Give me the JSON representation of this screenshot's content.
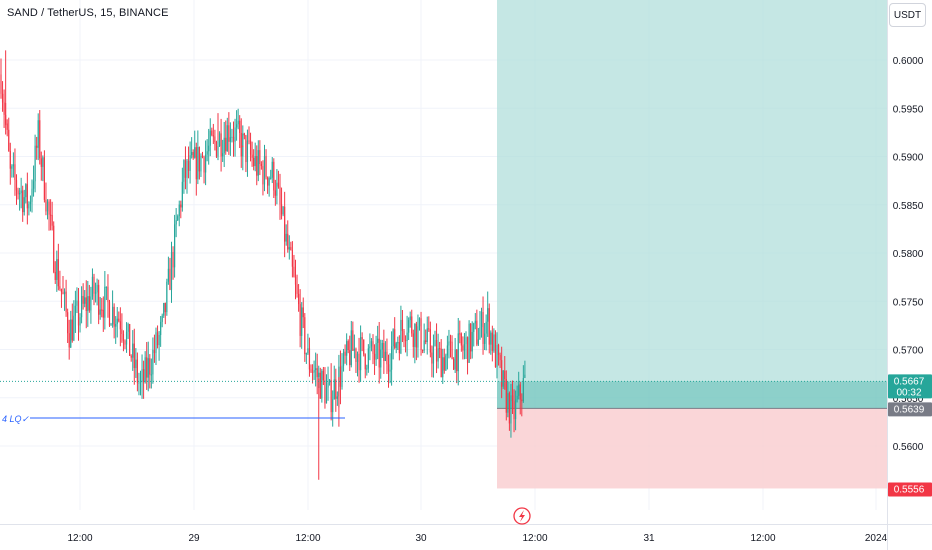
{
  "header": {
    "title": "SAND / TetherUS, 15, BINANCE",
    "currency_button": "USDT"
  },
  "colors": {
    "up": "#26a69a",
    "down": "#f23645",
    "profit_zone": "#b2dfdb",
    "loss_zone": "#f9cfd1",
    "level_line": "#2962ff",
    "grid": "#f0f3fa"
  },
  "annotation": {
    "level_label": "4 LQ✓",
    "level_price": 0.5629
  },
  "position": {
    "entry_price": "0.5639",
    "target_price": "0.6070",
    "stop_price": "0.5556"
  },
  "last_price": {
    "value": "0.5667",
    "countdown": "00:32"
  },
  "icons": {
    "time_axis_marker": "lightning-icon"
  },
  "chart_data": {
    "type": "candlestick",
    "symbol": "SAND / TetherUS",
    "interval": "15",
    "exchange": "BINANCE",
    "y_ticks": [
      "0.5600",
      "0.5650",
      "0.5700",
      "0.5750",
      "0.5800",
      "0.5850",
      "0.5900",
      "0.5950",
      "0.6000"
    ],
    "x_ticks": [
      "12:00",
      "29",
      "12:00",
      "30",
      "12:00",
      "31",
      "12:00",
      "2024"
    ],
    "ylim": [
      0.553,
      0.608
    ],
    "grid": true,
    "key_prices": {
      "day_open": 0.6,
      "intraday_high": 0.5945,
      "intraday_low": 0.5565,
      "last": 0.5667
    }
  }
}
